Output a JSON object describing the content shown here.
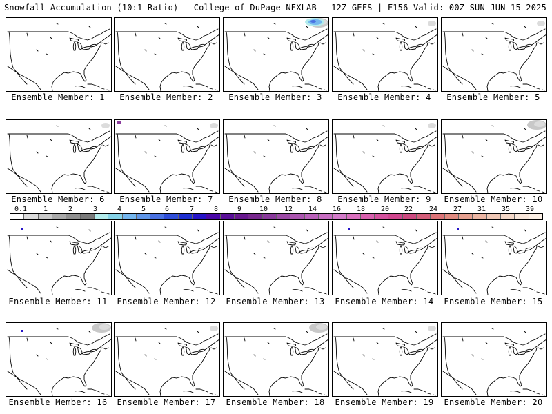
{
  "header": {
    "left_title": "Snowfall Accumulation (10:1 Ratio) | College of DuPage NEXLAB",
    "right_title": "12Z GEFS | F156 Valid: 00Z SUN JUN 15 2025"
  },
  "panels": [
    {
      "label": "Ensemble Member: 1",
      "snow": []
    },
    {
      "label": "Ensemble Member: 2",
      "snow": []
    },
    {
      "label": "Ensemble Member: 3",
      "snow": [
        "northeast-canada-light",
        "northeast-canada-blue"
      ]
    },
    {
      "label": "Ensemble Member: 4",
      "snow": [
        "northeast-canada-trace"
      ]
    },
    {
      "label": "Ensemble Member: 5",
      "snow": [
        "northeast-canada-trace"
      ]
    },
    {
      "label": "Ensemble Member: 6",
      "snow": [
        "northeast-canada-trace"
      ]
    },
    {
      "label": "Ensemble Member: 7",
      "snow": [
        "northeast-canada-trace",
        "northwest-purple"
      ]
    },
    {
      "label": "Ensemble Member: 8",
      "snow": []
    },
    {
      "label": "Ensemble Member: 9",
      "snow": [
        "northeast-canada-trace"
      ]
    },
    {
      "label": "Ensemble Member: 10",
      "snow": [
        "northeast-canada-light"
      ]
    },
    {
      "label": "Ensemble Member: 11",
      "snow": [
        "northwest-blue"
      ]
    },
    {
      "label": "Ensemble Member: 12",
      "snow": []
    },
    {
      "label": "Ensemble Member: 13",
      "snow": []
    },
    {
      "label": "Ensemble Member: 14",
      "snow": [
        "northwest-blue"
      ]
    },
    {
      "label": "Ensemble Member: 15",
      "snow": [
        "northwest-blue"
      ]
    },
    {
      "label": "Ensemble Member: 16",
      "snow": [
        "northeast-canada-light",
        "northwest-blue"
      ]
    },
    {
      "label": "Ensemble Member: 17",
      "snow": [
        "northeast-canada-trace"
      ]
    },
    {
      "label": "Ensemble Member: 18",
      "snow": [
        "northeast-canada-light"
      ]
    },
    {
      "label": "Ensemble Member: 19",
      "snow": [
        "northeast-canada-trace"
      ]
    },
    {
      "label": "Ensemble Member: 20",
      "snow": []
    }
  ],
  "scale": {
    "labels": [
      "0.1",
      "1",
      "2",
      "3",
      "4",
      "5",
      "6",
      "7",
      "8",
      "9",
      "10",
      "12",
      "14",
      "16",
      "18",
      "20",
      "22",
      "24",
      "27",
      "31",
      "35",
      "39"
    ],
    "colors": [
      "#ffffff",
      "#dcdcdc",
      "#c8c8c8",
      "#a9a9a9",
      "#909090",
      "#7a7a7a",
      "#b3ecec",
      "#86d3e8",
      "#74b6ee",
      "#5f96e8",
      "#4a72e2",
      "#2f4ed8",
      "#1e2fd0",
      "#2614c8",
      "#4a08a8",
      "#5a1098",
      "#68188e",
      "#78288e",
      "#8a3a9c",
      "#9c4aa6",
      "#ac56b0",
      "#ba62ba",
      "#c86ec2",
      "#d47cca",
      "#da70be",
      "#d860ae",
      "#d4529e",
      "#d0468e",
      "#cc4a80",
      "#d45e7a",
      "#dc7478",
      "#e08a80",
      "#e6a090",
      "#ecb6a4",
      "#f0c8b6",
      "#f4d8c8",
      "#f8e6da",
      "#fcf0e6"
    ]
  }
}
